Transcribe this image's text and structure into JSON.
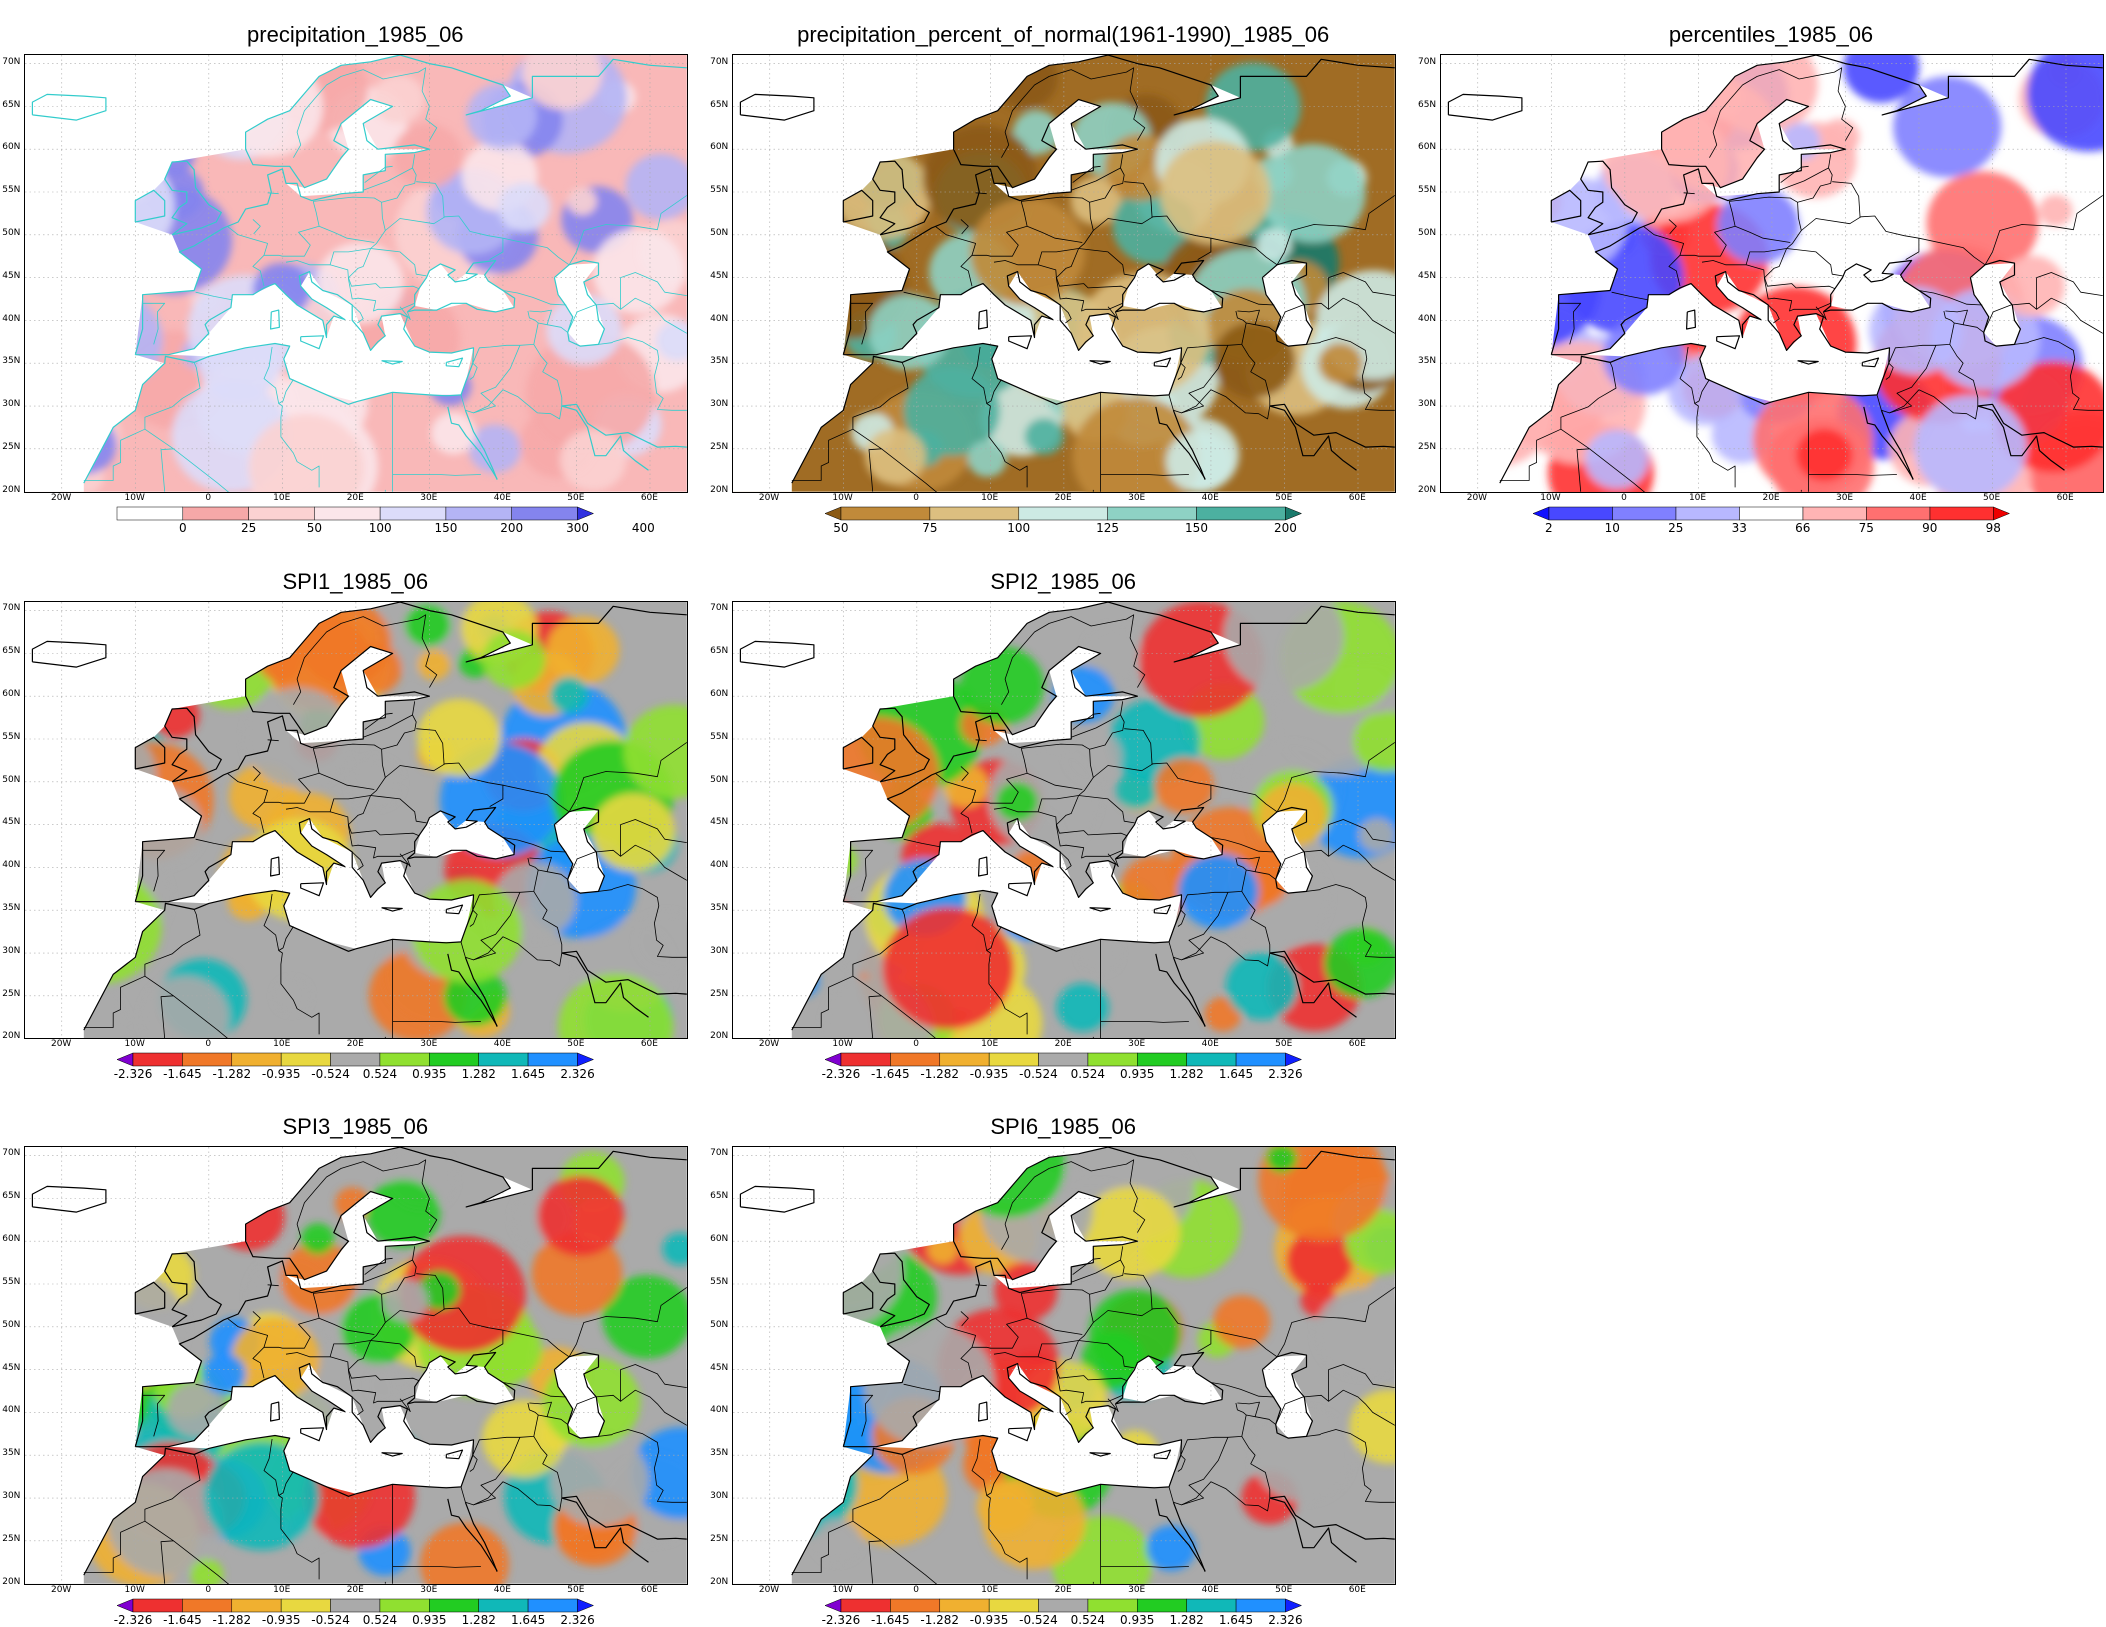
{
  "lat_ticks": [
    "70N",
    "65N",
    "60N",
    "55N",
    "50N",
    "45N",
    "40N",
    "35N",
    "30N",
    "25N",
    "20N"
  ],
  "lon_ticks": [
    "20W",
    "10W",
    "0",
    "10E",
    "20E",
    "30E",
    "40E",
    "50E",
    "60E"
  ],
  "colors": {
    "coast_line": "#32c8c8",
    "border_line": "#000000",
    "grid_line": "#aaaaaa",
    "missing": "#ffffff"
  },
  "panels": [
    {
      "id": "precip",
      "title": "precipitation_1985_06",
      "scheme": "precip",
      "coast_color": "#33cccc",
      "colorbar": {
        "labels": [
          "0",
          "25",
          "50",
          "100",
          "150",
          "200",
          "300",
          "400"
        ],
        "colors": [
          "#ffffff",
          "#f6a8a8",
          "#fbd2d2",
          "#fbe6ea",
          "#dcdcfa",
          "#b4b4f5",
          "#8484ee",
          "#3030e0"
        ],
        "arrow_left": false,
        "arrow_right": true
      }
    },
    {
      "id": "pct-normal",
      "title": "precipitation_percent_of_normal(1961-1990)_1985_06",
      "scheme": "pct",
      "coast_color": "#000000",
      "colorbar": {
        "labels": [
          "50",
          "75",
          "100",
          "125",
          "150",
          "200"
        ],
        "colors": [
          "#8b5a14",
          "#c08a3a",
          "#dcbf80",
          "#cdeae4",
          "#8ed2c4",
          "#4cb0a0",
          "#1a7a6c"
        ],
        "arrow_left": true,
        "arrow_right": true
      }
    },
    {
      "id": "percentiles",
      "title": "percentiles_1985_06",
      "scheme": "pctile",
      "coast_color": "#000000",
      "colorbar": {
        "labels": [
          "2",
          "10",
          "25",
          "33",
          "66",
          "75",
          "90",
          "98"
        ],
        "colors": [
          "#1010ff",
          "#4848ff",
          "#8080ff",
          "#b8b8ff",
          "#ffffff",
          "#ffb4b4",
          "#ff7070",
          "#ff3030",
          "#ee0000"
        ],
        "arrow_left": true,
        "arrow_right": true
      }
    },
    {
      "id": "spi1",
      "title": "SPI1_1985_06",
      "scheme": "spi",
      "coast_color": "#000000",
      "colorbar": {
        "labels": [
          "-2.326",
          "-1.645",
          "-1.282",
          "-0.935",
          "-0.524",
          "0.524",
          "0.935",
          "1.282",
          "1.645",
          "2.326"
        ],
        "colors": [
          "#8000d0",
          "#ee3030",
          "#f07828",
          "#f0b030",
          "#e8d840",
          "#aaaaaa",
          "#90e030",
          "#22cc22",
          "#10b8b8",
          "#2090ff",
          "#1020ff"
        ],
        "arrow_left": true,
        "arrow_right": true
      }
    },
    {
      "id": "spi2",
      "title": "SPI2_1985_06",
      "scheme": "spi",
      "coast_color": "#000000",
      "colorbar": {
        "labels": [
          "-2.326",
          "-1.645",
          "-1.282",
          "-0.935",
          "-0.524",
          "0.524",
          "0.935",
          "1.282",
          "1.645",
          "2.326"
        ],
        "colors": [
          "#8000d0",
          "#ee3030",
          "#f07828",
          "#f0b030",
          "#e8d840",
          "#aaaaaa",
          "#90e030",
          "#22cc22",
          "#10b8b8",
          "#2090ff",
          "#1020ff"
        ],
        "arrow_left": true,
        "arrow_right": true
      }
    },
    {
      "id": "spi3",
      "title": "SPI3_1985_06",
      "scheme": "spi",
      "coast_color": "#000000",
      "colorbar": {
        "labels": [
          "-2.326",
          "-1.645",
          "-1.282",
          "-0.935",
          "-0.524",
          "0.524",
          "0.935",
          "1.282",
          "1.645",
          "2.326"
        ],
        "colors": [
          "#8000d0",
          "#ee3030",
          "#f07828",
          "#f0b030",
          "#e8d840",
          "#aaaaaa",
          "#90e030",
          "#22cc22",
          "#10b8b8",
          "#2090ff",
          "#1020ff"
        ],
        "arrow_left": true,
        "arrow_right": true
      }
    },
    {
      "id": "spi6",
      "title": "SPI6_1985_06",
      "scheme": "spi",
      "coast_color": "#000000",
      "colorbar": {
        "labels": [
          "-2.326",
          "-1.645",
          "-1.282",
          "-0.935",
          "-0.524",
          "0.524",
          "0.935",
          "1.282",
          "1.645",
          "2.326"
        ],
        "colors": [
          "#8000d0",
          "#ee3030",
          "#f07828",
          "#f0b030",
          "#e8d840",
          "#aaaaaa",
          "#90e030",
          "#22cc22",
          "#10b8b8",
          "#2090ff",
          "#1020ff"
        ],
        "arrow_left": true,
        "arrow_right": true
      }
    }
  ]
}
